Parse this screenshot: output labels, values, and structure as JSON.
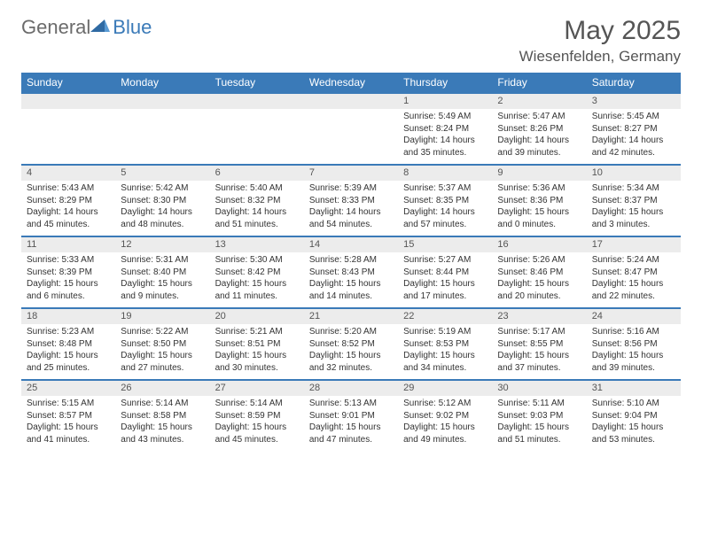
{
  "logo": {
    "label1": "General",
    "label2": "Blue"
  },
  "title": "May 2025",
  "location": "Wiesenfelden, Germany",
  "colors": {
    "accent": "#3a7ab8",
    "gray_band": "#ececec",
    "text_heading": "#555555",
    "text_body": "#333333",
    "logo_gray": "#6b6b6b"
  },
  "daysOfWeek": [
    "Sunday",
    "Monday",
    "Tuesday",
    "Wednesday",
    "Thursday",
    "Friday",
    "Saturday"
  ],
  "weeks": [
    [
      {
        "n": "",
        "sr": "",
        "ss": "",
        "dl": ""
      },
      {
        "n": "",
        "sr": "",
        "ss": "",
        "dl": ""
      },
      {
        "n": "",
        "sr": "",
        "ss": "",
        "dl": ""
      },
      {
        "n": "",
        "sr": "",
        "ss": "",
        "dl": ""
      },
      {
        "n": "1",
        "sr": "Sunrise: 5:49 AM",
        "ss": "Sunset: 8:24 PM",
        "dl": "Daylight: 14 hours and 35 minutes."
      },
      {
        "n": "2",
        "sr": "Sunrise: 5:47 AM",
        "ss": "Sunset: 8:26 PM",
        "dl": "Daylight: 14 hours and 39 minutes."
      },
      {
        "n": "3",
        "sr": "Sunrise: 5:45 AM",
        "ss": "Sunset: 8:27 PM",
        "dl": "Daylight: 14 hours and 42 minutes."
      }
    ],
    [
      {
        "n": "4",
        "sr": "Sunrise: 5:43 AM",
        "ss": "Sunset: 8:29 PM",
        "dl": "Daylight: 14 hours and 45 minutes."
      },
      {
        "n": "5",
        "sr": "Sunrise: 5:42 AM",
        "ss": "Sunset: 8:30 PM",
        "dl": "Daylight: 14 hours and 48 minutes."
      },
      {
        "n": "6",
        "sr": "Sunrise: 5:40 AM",
        "ss": "Sunset: 8:32 PM",
        "dl": "Daylight: 14 hours and 51 minutes."
      },
      {
        "n": "7",
        "sr": "Sunrise: 5:39 AM",
        "ss": "Sunset: 8:33 PM",
        "dl": "Daylight: 14 hours and 54 minutes."
      },
      {
        "n": "8",
        "sr": "Sunrise: 5:37 AM",
        "ss": "Sunset: 8:35 PM",
        "dl": "Daylight: 14 hours and 57 minutes."
      },
      {
        "n": "9",
        "sr": "Sunrise: 5:36 AM",
        "ss": "Sunset: 8:36 PM",
        "dl": "Daylight: 15 hours and 0 minutes."
      },
      {
        "n": "10",
        "sr": "Sunrise: 5:34 AM",
        "ss": "Sunset: 8:37 PM",
        "dl": "Daylight: 15 hours and 3 minutes."
      }
    ],
    [
      {
        "n": "11",
        "sr": "Sunrise: 5:33 AM",
        "ss": "Sunset: 8:39 PM",
        "dl": "Daylight: 15 hours and 6 minutes."
      },
      {
        "n": "12",
        "sr": "Sunrise: 5:31 AM",
        "ss": "Sunset: 8:40 PM",
        "dl": "Daylight: 15 hours and 9 minutes."
      },
      {
        "n": "13",
        "sr": "Sunrise: 5:30 AM",
        "ss": "Sunset: 8:42 PM",
        "dl": "Daylight: 15 hours and 11 minutes."
      },
      {
        "n": "14",
        "sr": "Sunrise: 5:28 AM",
        "ss": "Sunset: 8:43 PM",
        "dl": "Daylight: 15 hours and 14 minutes."
      },
      {
        "n": "15",
        "sr": "Sunrise: 5:27 AM",
        "ss": "Sunset: 8:44 PM",
        "dl": "Daylight: 15 hours and 17 minutes."
      },
      {
        "n": "16",
        "sr": "Sunrise: 5:26 AM",
        "ss": "Sunset: 8:46 PM",
        "dl": "Daylight: 15 hours and 20 minutes."
      },
      {
        "n": "17",
        "sr": "Sunrise: 5:24 AM",
        "ss": "Sunset: 8:47 PM",
        "dl": "Daylight: 15 hours and 22 minutes."
      }
    ],
    [
      {
        "n": "18",
        "sr": "Sunrise: 5:23 AM",
        "ss": "Sunset: 8:48 PM",
        "dl": "Daylight: 15 hours and 25 minutes."
      },
      {
        "n": "19",
        "sr": "Sunrise: 5:22 AM",
        "ss": "Sunset: 8:50 PM",
        "dl": "Daylight: 15 hours and 27 minutes."
      },
      {
        "n": "20",
        "sr": "Sunrise: 5:21 AM",
        "ss": "Sunset: 8:51 PM",
        "dl": "Daylight: 15 hours and 30 minutes."
      },
      {
        "n": "21",
        "sr": "Sunrise: 5:20 AM",
        "ss": "Sunset: 8:52 PM",
        "dl": "Daylight: 15 hours and 32 minutes."
      },
      {
        "n": "22",
        "sr": "Sunrise: 5:19 AM",
        "ss": "Sunset: 8:53 PM",
        "dl": "Daylight: 15 hours and 34 minutes."
      },
      {
        "n": "23",
        "sr": "Sunrise: 5:17 AM",
        "ss": "Sunset: 8:55 PM",
        "dl": "Daylight: 15 hours and 37 minutes."
      },
      {
        "n": "24",
        "sr": "Sunrise: 5:16 AM",
        "ss": "Sunset: 8:56 PM",
        "dl": "Daylight: 15 hours and 39 minutes."
      }
    ],
    [
      {
        "n": "25",
        "sr": "Sunrise: 5:15 AM",
        "ss": "Sunset: 8:57 PM",
        "dl": "Daylight: 15 hours and 41 minutes."
      },
      {
        "n": "26",
        "sr": "Sunrise: 5:14 AM",
        "ss": "Sunset: 8:58 PM",
        "dl": "Daylight: 15 hours and 43 minutes."
      },
      {
        "n": "27",
        "sr": "Sunrise: 5:14 AM",
        "ss": "Sunset: 8:59 PM",
        "dl": "Daylight: 15 hours and 45 minutes."
      },
      {
        "n": "28",
        "sr": "Sunrise: 5:13 AM",
        "ss": "Sunset: 9:01 PM",
        "dl": "Daylight: 15 hours and 47 minutes."
      },
      {
        "n": "29",
        "sr": "Sunrise: 5:12 AM",
        "ss": "Sunset: 9:02 PM",
        "dl": "Daylight: 15 hours and 49 minutes."
      },
      {
        "n": "30",
        "sr": "Sunrise: 5:11 AM",
        "ss": "Sunset: 9:03 PM",
        "dl": "Daylight: 15 hours and 51 minutes."
      },
      {
        "n": "31",
        "sr": "Sunrise: 5:10 AM",
        "ss": "Sunset: 9:04 PM",
        "dl": "Daylight: 15 hours and 53 minutes."
      }
    ]
  ]
}
